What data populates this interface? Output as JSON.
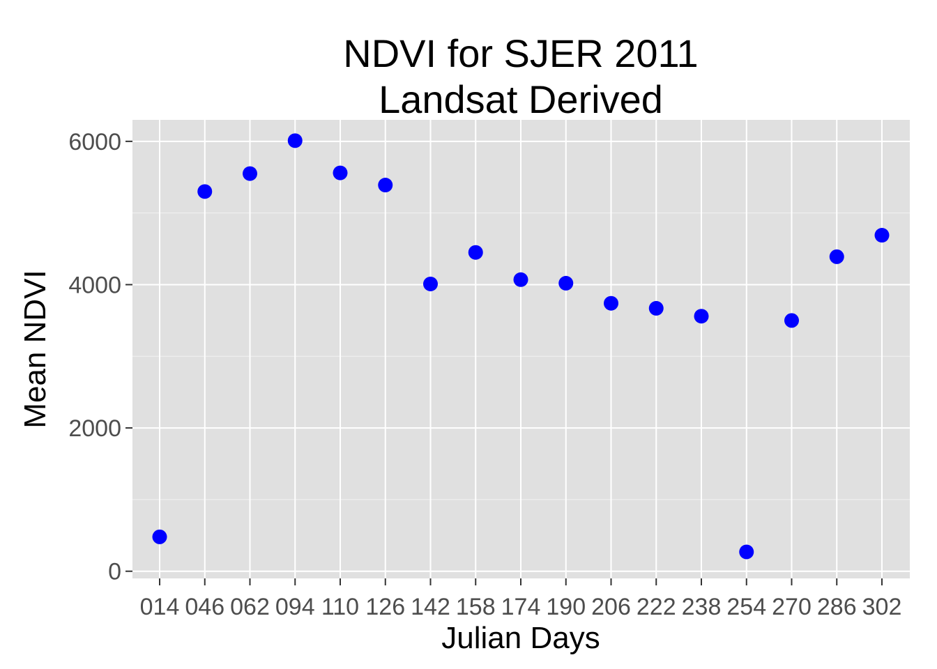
{
  "chart_data": {
    "type": "scatter",
    "title": "NDVI for SJER 2011",
    "subtitle": "Landsat Derived",
    "xlabel": "Julian Days",
    "ylabel": "Mean NDVI",
    "categories": [
      "014",
      "046",
      "062",
      "094",
      "110",
      "126",
      "142",
      "158",
      "174",
      "190",
      "206",
      "222",
      "238",
      "254",
      "270",
      "286",
      "302"
    ],
    "values": [
      480,
      5300,
      5550,
      6010,
      5560,
      5390,
      4010,
      4450,
      4070,
      4020,
      3740,
      3670,
      3560,
      270,
      3500,
      4390,
      4690
    ],
    "yticks": [
      0,
      2000,
      4000,
      6000
    ],
    "ylim": [
      -100,
      6300
    ],
    "grid": true,
    "panel_color": "#E0E0E0",
    "grid_color": "#FFFFFF",
    "point_color": "#0000FF"
  }
}
